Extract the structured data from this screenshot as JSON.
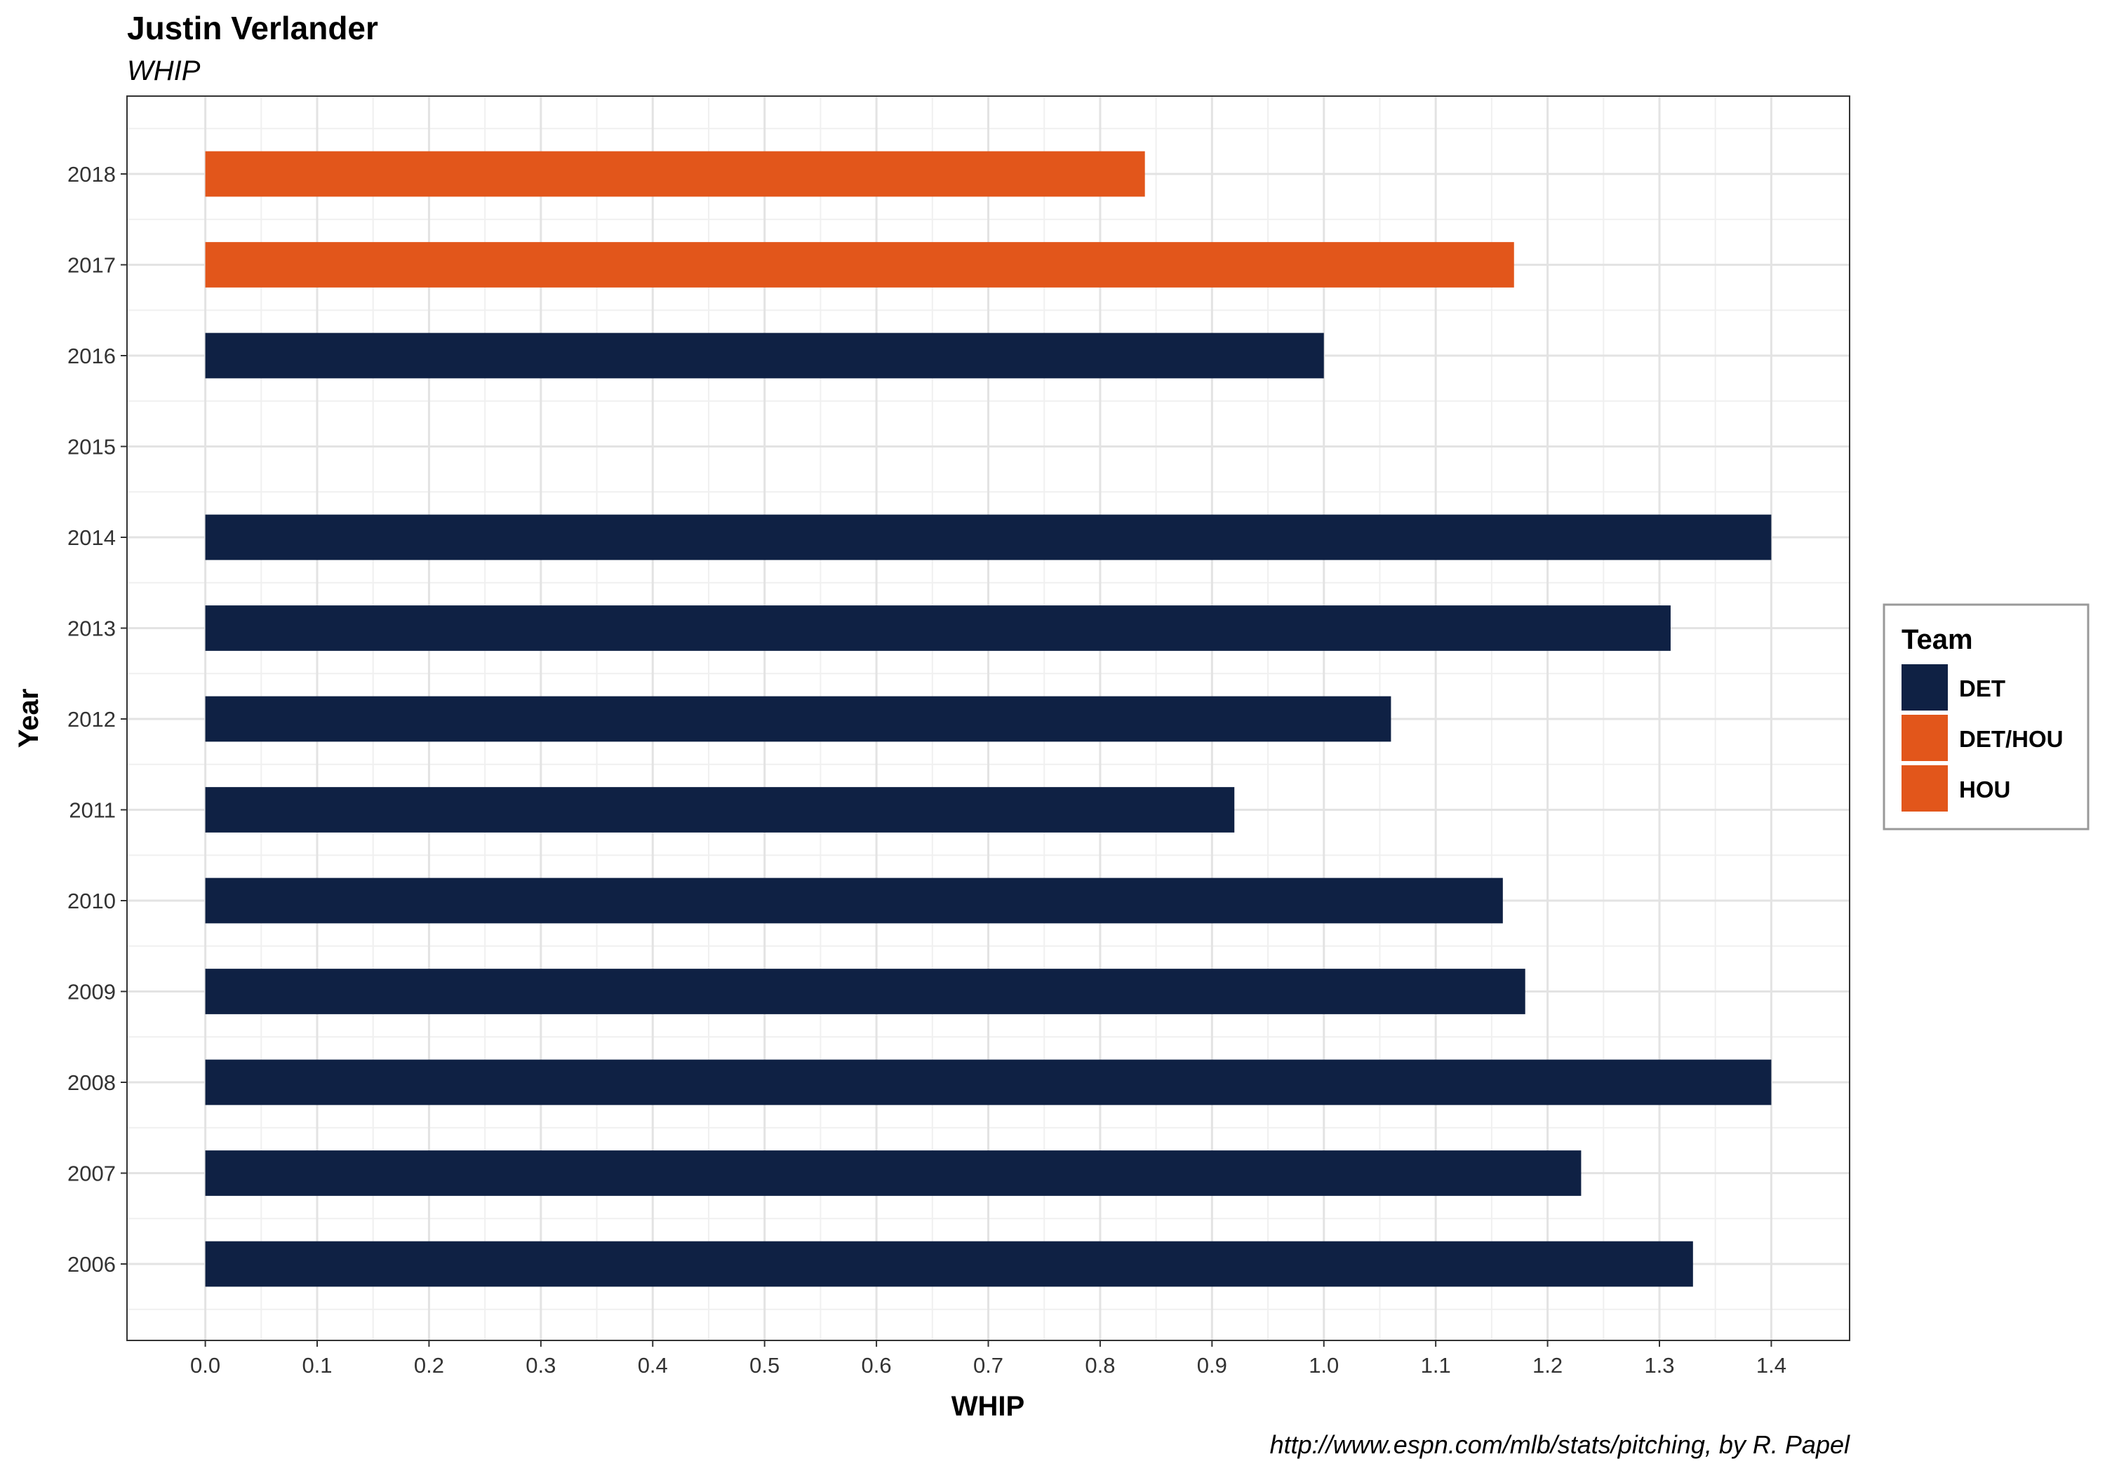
{
  "chart_data": {
    "type": "bar",
    "orientation": "horizontal",
    "title": "Justin Verlander",
    "subtitle": "WHIP",
    "xlabel": "WHIP",
    "ylabel": "Year",
    "xlim": [
      -0.07,
      1.47
    ],
    "x_ticks": [
      "0.0",
      "0.1",
      "0.2",
      "0.3",
      "0.4",
      "0.5",
      "0.6",
      "0.7",
      "0.8",
      "0.9",
      "1.0",
      "1.1",
      "1.2",
      "1.3",
      "1.4"
    ],
    "categories": [
      "2006",
      "2007",
      "2008",
      "2009",
      "2010",
      "2011",
      "2012",
      "2013",
      "2014",
      "2015",
      "2016",
      "2017",
      "2018"
    ],
    "values": [
      1.33,
      1.23,
      1.4,
      1.18,
      1.16,
      0.92,
      1.06,
      1.31,
      1.4,
      null,
      1.0,
      1.17,
      0.84
    ],
    "teams": [
      "DET",
      "DET",
      "DET",
      "DET",
      "DET",
      "DET",
      "DET",
      "DET",
      "DET",
      null,
      "DET",
      "DET/HOU",
      "HOU"
    ],
    "grid": true,
    "legend": {
      "title": "Team",
      "placement": "right",
      "entries": [
        {
          "label": "DET",
          "color": "#0F2144"
        },
        {
          "label": "DET/HOU",
          "color": "#E2561B"
        },
        {
          "label": "HOU",
          "color": "#E2561B"
        }
      ]
    },
    "caption": "http://www.espn.com/mlb/stats/pitching, by R. Papel"
  }
}
